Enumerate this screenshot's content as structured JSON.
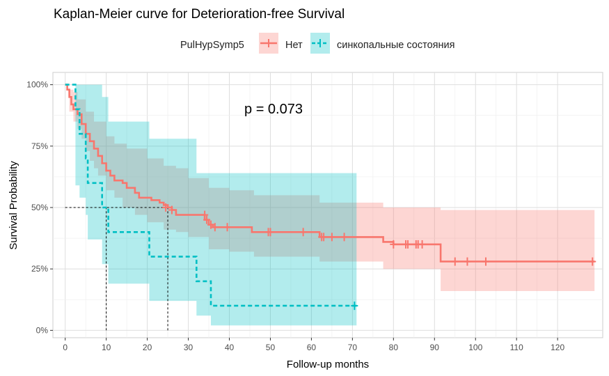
{
  "chart_data": {
    "type": "line",
    "subtype": "kaplan-meier",
    "title": "Kaplan-Meier curve for Deterioration-free Survival",
    "xlabel": "Follow-up months",
    "ylabel": "Survival Probability",
    "xlim": [
      -3,
      131
    ],
    "ylim": [
      -0.03,
      1.05
    ],
    "xticks": [
      0,
      10,
      20,
      30,
      40,
      50,
      60,
      70,
      80,
      90,
      100,
      110,
      120
    ],
    "xtick_labels": [
      "0",
      "10",
      "20",
      "30",
      "40",
      "50",
      "60",
      "70",
      "80",
      "90",
      "100",
      "110",
      "120"
    ],
    "yticks": [
      0,
      0.25,
      0.5,
      0.75,
      1.0
    ],
    "ytick_labels": [
      "0%",
      "25%",
      "50%",
      "75%",
      "100%"
    ],
    "grid": true,
    "legend": {
      "title": "PulHypSymp5",
      "placement": "top",
      "entries": [
        "Нет",
        "синкопальные состояния"
      ]
    },
    "annotation": "p = 0.073",
    "series": [
      {
        "name": "Нет",
        "color": "#F8766D",
        "line_style": "solid",
        "steps": [
          [
            0,
            1.0
          ],
          [
            0.5,
            0.98
          ],
          [
            1,
            0.95
          ],
          [
            1.5,
            0.92
          ],
          [
            2,
            0.9
          ],
          [
            3,
            0.88
          ],
          [
            4,
            0.84
          ],
          [
            5,
            0.8
          ],
          [
            6,
            0.77
          ],
          [
            7,
            0.74
          ],
          [
            8,
            0.71
          ],
          [
            9,
            0.68
          ],
          [
            10,
            0.65
          ],
          [
            11,
            0.63
          ],
          [
            12,
            0.61
          ],
          [
            14,
            0.6
          ],
          [
            15,
            0.58
          ],
          [
            17,
            0.56
          ],
          [
            18,
            0.54
          ],
          [
            21,
            0.53
          ],
          [
            23,
            0.52
          ],
          [
            24,
            0.51
          ],
          [
            25,
            0.5
          ],
          [
            26,
            0.49
          ],
          [
            27,
            0.47
          ],
          [
            34,
            0.45
          ],
          [
            35,
            0.43
          ],
          [
            36,
            0.42
          ],
          [
            45.5,
            0.4
          ],
          [
            62,
            0.38
          ],
          [
            77.5,
            0.36
          ],
          [
            80,
            0.35
          ],
          [
            91.5,
            0.28
          ],
          [
            129,
            0.28
          ]
        ],
        "censored": [
          [
            24.5,
            0.5
          ],
          [
            26,
            0.49
          ],
          [
            34,
            0.47
          ],
          [
            34.5,
            0.45
          ],
          [
            35.5,
            0.43
          ],
          [
            36.5,
            0.42
          ],
          [
            39.5,
            0.42
          ],
          [
            49.5,
            0.4
          ],
          [
            50,
            0.4
          ],
          [
            58,
            0.4
          ],
          [
            62.5,
            0.38
          ],
          [
            63,
            0.38
          ],
          [
            65,
            0.38
          ],
          [
            68,
            0.38
          ],
          [
            80,
            0.35
          ],
          [
            83,
            0.35
          ],
          [
            83.5,
            0.35
          ],
          [
            85.5,
            0.35
          ],
          [
            86,
            0.35
          ],
          [
            87,
            0.35
          ],
          [
            95,
            0.28
          ],
          [
            98,
            0.28
          ],
          [
            102.5,
            0.28
          ],
          [
            128.5,
            0.28
          ]
        ],
        "ci_lower": [
          [
            0,
            1.0
          ],
          [
            1,
            0.89
          ],
          [
            2,
            0.85
          ],
          [
            3,
            0.82
          ],
          [
            4,
            0.78
          ],
          [
            5,
            0.73
          ],
          [
            6,
            0.69
          ],
          [
            7,
            0.66
          ],
          [
            8,
            0.63
          ],
          [
            10,
            0.57
          ],
          [
            12,
            0.54
          ],
          [
            14,
            0.5
          ],
          [
            17,
            0.47
          ],
          [
            20,
            0.44
          ],
          [
            24,
            0.41
          ],
          [
            27,
            0.4
          ],
          [
            30,
            0.38
          ],
          [
            35,
            0.33
          ],
          [
            40,
            0.32
          ],
          [
            46,
            0.3
          ],
          [
            62,
            0.28
          ],
          [
            77.5,
            0.25
          ],
          [
            91.5,
            0.16
          ],
          [
            129,
            0.16
          ]
        ],
        "ci_upper": [
          [
            0,
            1.0
          ],
          [
            1,
            0.98
          ],
          [
            2,
            0.97
          ],
          [
            3,
            0.94
          ],
          [
            5,
            0.89
          ],
          [
            7,
            0.85
          ],
          [
            10,
            0.79
          ],
          [
            12,
            0.76
          ],
          [
            15,
            0.74
          ],
          [
            20,
            0.7
          ],
          [
            24,
            0.67
          ],
          [
            27,
            0.66
          ],
          [
            30,
            0.62
          ],
          [
            35,
            0.58
          ],
          [
            40,
            0.57
          ],
          [
            46,
            0.55
          ],
          [
            62,
            0.52
          ],
          [
            77.5,
            0.5
          ],
          [
            91.5,
            0.49
          ],
          [
            129,
            0.49
          ]
        ]
      },
      {
        "name": "синкопальные состояния",
        "color": "#00BFC4",
        "line_style": "dashed",
        "steps": [
          [
            0,
            1.0
          ],
          [
            2.5,
            0.9
          ],
          [
            3.5,
            0.8
          ],
          [
            5,
            0.7
          ],
          [
            5.5,
            0.6
          ],
          [
            9,
            0.5
          ],
          [
            10.5,
            0.4
          ],
          [
            20.5,
            0.3
          ],
          [
            32,
            0.2
          ],
          [
            35.5,
            0.1
          ],
          [
            71,
            0.1
          ]
        ],
        "censored": [
          [
            70.5,
            0.1
          ]
        ],
        "ci_lower": [
          [
            0,
            1.0
          ],
          [
            2.5,
            0.59
          ],
          [
            3.5,
            0.54
          ],
          [
            5,
            0.47
          ],
          [
            5.5,
            0.37
          ],
          [
            9,
            0.27
          ],
          [
            10.5,
            0.19
          ],
          [
            20.5,
            0.12
          ],
          [
            32,
            0.06
          ],
          [
            35.5,
            0.02
          ],
          [
            71,
            0.02
          ]
        ],
        "ci_upper": [
          [
            0,
            1.0
          ],
          [
            2.5,
            1.0
          ],
          [
            5,
            1.0
          ],
          [
            9,
            0.95
          ],
          [
            10.5,
            0.85
          ],
          [
            20.5,
            0.78
          ],
          [
            32,
            0.64
          ],
          [
            35.5,
            0.64
          ],
          [
            71,
            0.64
          ]
        ]
      }
    ],
    "median_lines": [
      {
        "y": 0.5,
        "x_from": 0,
        "x_to": 25
      },
      {
        "x": 10,
        "y_from": 0,
        "y_to": 0.5
      },
      {
        "x": 25,
        "y_from": 0,
        "y_to": 0.5
      }
    ]
  }
}
